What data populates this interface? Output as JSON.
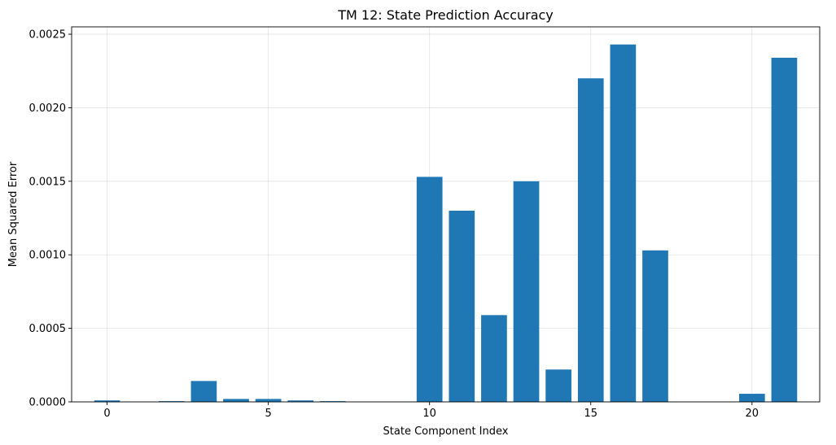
{
  "chart_data": {
    "type": "bar",
    "title": "TM 12: State Prediction Accuracy",
    "xlabel": "State Component Index",
    "ylabel": "Mean Squared Error",
    "x": [
      0,
      1,
      2,
      3,
      4,
      5,
      6,
      7,
      8,
      9,
      10,
      11,
      12,
      13,
      14,
      15,
      16,
      17,
      18,
      19,
      20,
      21
    ],
    "values": [
      1e-05,
      0.0,
      5e-06,
      0.000142,
      2e-05,
      2e-05,
      1e-05,
      5e-06,
      0.0,
      0.0,
      0.00153,
      0.0013,
      0.00059,
      0.0015,
      0.00022,
      0.0022,
      0.00243,
      0.00103,
      0.0,
      0.0,
      5.5e-05,
      0.00234
    ],
    "xlim": [
      -1.1,
      22.1
    ],
    "ylim": [
      0,
      0.00255
    ],
    "xticks": [
      0,
      5,
      10,
      15,
      20
    ],
    "xtick_labels": [
      "0",
      "5",
      "10",
      "15",
      "20"
    ],
    "yticks": [
      0,
      0.0005,
      0.001,
      0.0015,
      0.002,
      0.0025
    ],
    "ytick_labels": [
      "0.0000",
      "0.0005",
      "0.0010",
      "0.0015",
      "0.0020",
      "0.0025"
    ],
    "bar_color": "#1f77b4",
    "grid": true,
    "legend": false
  }
}
